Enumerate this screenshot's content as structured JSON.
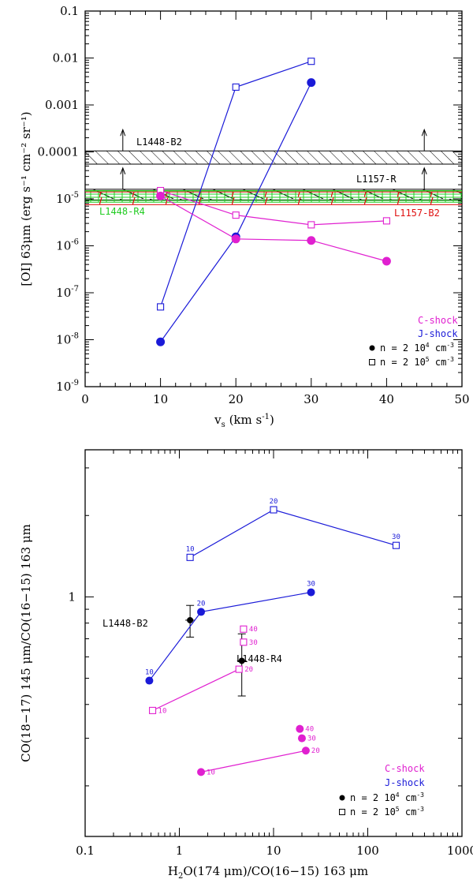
{
  "chart_data": [
    {
      "type": "line",
      "title": "",
      "xlabel": "v_s (km s^-1)",
      "xlabel_main": "v",
      "xlabel_sub": "s",
      "xlabel_rest": " (km s",
      "xlabel_unit_exp": "-1",
      "xlabel_close": ")",
      "ylabel": "[OI] 63μm (erg s^-1 cm^-2 sr^-1)",
      "ylabel_text": "[OI] 63μm (erg s⁻¹ cm⁻² sr⁻¹)",
      "x_scale": "linear",
      "y_scale": "log",
      "xlim": [
        0,
        50
      ],
      "ylim": [
        1e-09,
        0.1
      ],
      "x_ticks": [
        "0",
        "10",
        "20",
        "30",
        "40",
        "50"
      ],
      "y_ticks": [
        "10-9",
        "10-8",
        "10-7",
        "10-6",
        "10-5",
        "0.0001",
        "0.001",
        "0.01",
        "0.1"
      ],
      "series": [
        {
          "name": "J-shock",
          "density": "n = 2 10^5 cm^-3",
          "marker": "open-square",
          "color": "#1a1ad8",
          "x": [
            10,
            20,
            30
          ],
          "y": [
            5e-08,
            0.0024,
            0.0085
          ]
        },
        {
          "name": "J-shock",
          "density": "n = 2 10^4 cm^-3",
          "marker": "filled-circle",
          "color": "#1a1ad8",
          "x": [
            10,
            20,
            30
          ],
          "y": [
            9e-09,
            1.55e-06,
            0.003
          ]
        },
        {
          "name": "C-shock",
          "density": "n = 2 10^5 cm^-3",
          "marker": "open-square",
          "color": "#e020d0",
          "x": [
            10,
            20,
            30,
            40
          ],
          "y": [
            1.5e-05,
            4.5e-06,
            2.8e-06,
            3.4e-06
          ]
        },
        {
          "name": "C-shock",
          "density": "n = 2 10^4 cm^-3",
          "marker": "filled-circle",
          "color": "#e020d0",
          "x": [
            10,
            20,
            30,
            40
          ],
          "y": [
            1.15e-05,
            1.4e-06,
            1.3e-06,
            4.7e-07
          ]
        }
      ],
      "bands": [
        {
          "label": "L1448-B2",
          "y_range": [
            5.5e-05,
            0.000105
          ],
          "color": "#000000",
          "hatch": "diagonal",
          "lower_limit_arrows_x": [
            5,
            45
          ]
        },
        {
          "label": "L1157-R",
          "y_range": [
            9.5e-06,
            1.6e-05
          ],
          "color": "#000000",
          "hatch": "diagonal",
          "lower_limit_arrows_x": [
            5,
            45
          ]
        },
        {
          "label": "L1448-R4",
          "y_range": [
            8.5e-06,
            1.5e-05
          ],
          "color": "#22cc22",
          "hatch": "grid"
        },
        {
          "label": "L1157-B2",
          "y_range": [
            7.5e-06,
            1.4e-05
          ],
          "color": "#e01010",
          "hatch": "diagonal-red"
        }
      ],
      "legend": {
        "position": "bottom-right",
        "c_shock": "C-shock",
        "j_shock": "J-shock",
        "c_shock_color": "#e020d0",
        "j_shock_color": "#1a1ad8",
        "n1_prefix": "n = 2 10",
        "n1_exp": "4",
        "n2_prefix": "n = 2 10",
        "n2_exp": "5",
        "unit": " cm",
        "unit_exp": "-3"
      }
    },
    {
      "type": "scatter",
      "title": "",
      "xlabel": "H2O(174 μm)/CO(16-15) 163 μm",
      "xlabel_pre": "H",
      "xlabel_sub": "2",
      "xlabel_post": "O(174 μm)/CO(16−15) 163 μm",
      "ylabel": "CO(18-17) 145 μm/CO(16-15) 163 μm",
      "ylabel_text": "CO(18−17) 145 μm/CO(16−15) 163 μm",
      "x_scale": "log",
      "y_scale": "log",
      "xlim": [
        0.1,
        1000
      ],
      "ylim": [
        0.13,
        3.5
      ],
      "x_ticks": [
        "0.1",
        "1",
        "10",
        "100",
        "1000"
      ],
      "y_ticks": [
        "1"
      ],
      "series": [
        {
          "name": "J-shock",
          "density": "n = 2 10^5 cm^-3",
          "marker": "open-square",
          "color": "#1a1ad8",
          "x": [
            1.3,
            10,
            200
          ],
          "y": [
            1.4,
            2.1,
            1.55
          ],
          "labels": [
            "10",
            "20",
            "30"
          ]
        },
        {
          "name": "J-shock",
          "density": "n = 2 10^4 cm^-3",
          "marker": "filled-circle",
          "color": "#1a1ad8",
          "x": [
            0.48,
            1.7,
            25
          ],
          "y": [
            0.49,
            0.88,
            1.04
          ],
          "labels": [
            "10",
            "20",
            "30"
          ]
        },
        {
          "name": "C-shock",
          "density": "n = 2 10^5 cm^-3",
          "marker": "open-square",
          "color": "#e020d0",
          "x": [
            0.52,
            4.3,
            4.8,
            4.8
          ],
          "y": [
            0.38,
            0.54,
            0.68,
            0.76
          ],
          "labels": [
            "10",
            "20",
            "30",
            "40"
          ]
        },
        {
          "name": "C-shock",
          "density": "n = 2 10^4 cm^-3",
          "marker": "filled-circle",
          "color": "#e020d0",
          "x": [
            1.7,
            22,
            20,
            19
          ],
          "y": [
            0.225,
            0.27,
            0.3,
            0.325
          ],
          "labels": [
            "10",
            "20",
            "30",
            "40"
          ]
        }
      ],
      "observations": [
        {
          "label": "L1448-B2",
          "x": 1.3,
          "y": 0.82,
          "yerr": [
            0.71,
            0.93
          ]
        },
        {
          "label": "L1448-R4",
          "x": 4.6,
          "y": 0.58,
          "yerr": [
            0.43,
            0.73
          ]
        }
      ],
      "legend": {
        "position": "bottom-right",
        "c_shock": "C-shock",
        "j_shock": "J-shock",
        "c_shock_color": "#e020d0",
        "j_shock_color": "#1a1ad8",
        "n1_prefix": "n = 2 10",
        "n1_exp": "4",
        "n2_prefix": "n = 2 10",
        "n2_exp": "5",
        "unit": " cm",
        "unit_exp": "-3"
      }
    }
  ]
}
